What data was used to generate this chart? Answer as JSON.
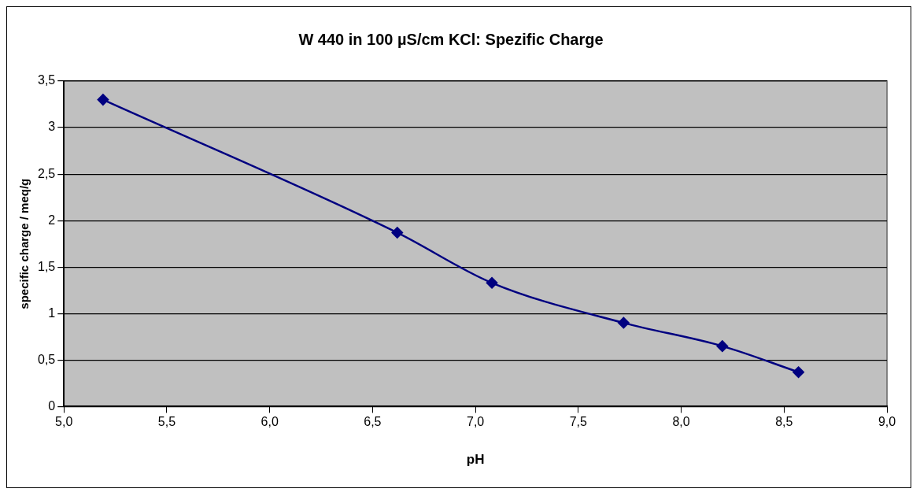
{
  "chart_data": {
    "type": "line",
    "title": "W 440 in 100 µS/cm KCl: Spezific Charge",
    "xlabel": "pH",
    "ylabel": "specific charge / meq/g",
    "x": [
      5.19,
      6.62,
      7.08,
      7.72,
      8.2,
      8.57
    ],
    "series": [
      {
        "color": "#000080",
        "values": [
          3.3,
          1.87,
          1.33,
          0.9,
          0.65,
          0.37
        ]
      }
    ],
    "xlim": [
      5,
      9
    ],
    "xticks": [
      {
        "value": 5,
        "label": "5,0"
      },
      {
        "value": 5.5,
        "label": "5,5"
      },
      {
        "value": 6,
        "label": "6,0"
      },
      {
        "value": 6.5,
        "label": "6,5"
      },
      {
        "value": 7,
        "label": "7,0"
      },
      {
        "value": 7.5,
        "label": "7,5"
      },
      {
        "value": 8,
        "label": "8,0"
      },
      {
        "value": 8.5,
        "label": "8,5"
      },
      {
        "value": 9,
        "label": "9,0"
      }
    ],
    "ylim": [
      0,
      3.5
    ],
    "yticks": [
      0,
      {
        "value": 0.5,
        "label": "0,5"
      },
      1,
      {
        "value": 1.5,
        "label": "1,5"
      },
      2,
      {
        "value": 2.5,
        "label": "2,5"
      },
      3,
      {
        "value": 3.5,
        "label": "3,5"
      }
    ],
    "grid": "y",
    "legend": false,
    "marker": "diamond",
    "line_style": "solid"
  }
}
